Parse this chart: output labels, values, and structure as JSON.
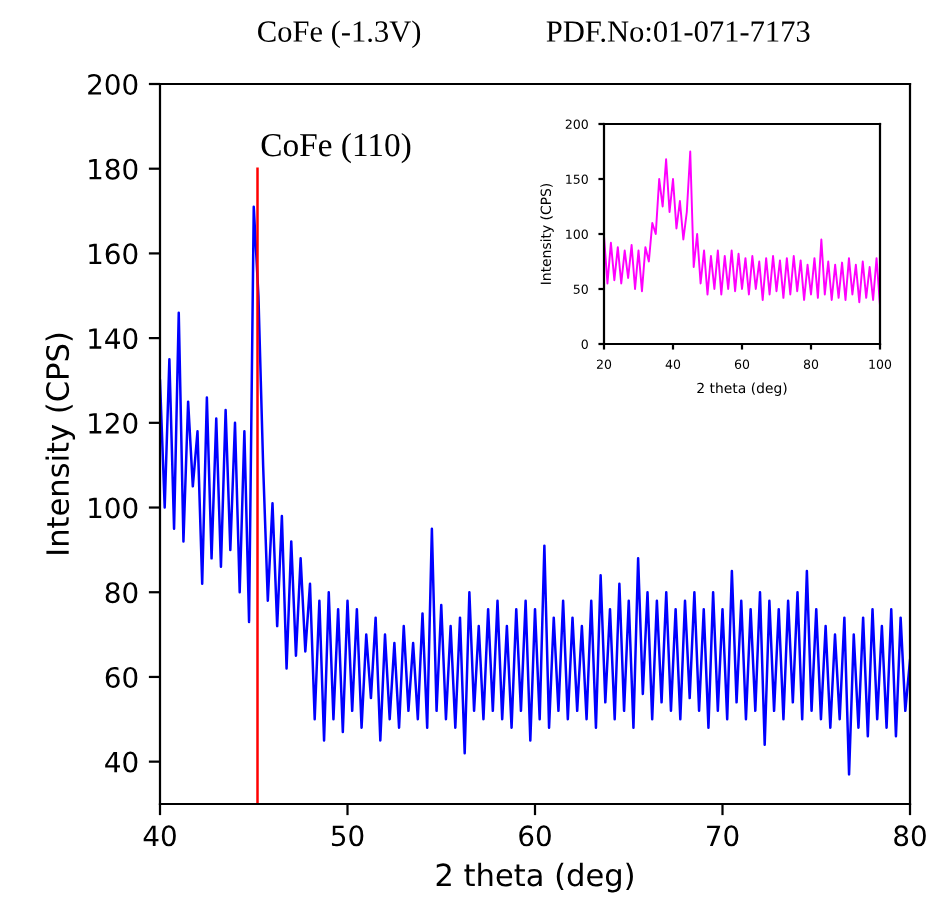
{
  "chart_data": [
    {
      "type": "line",
      "title": "CoFe (-1.3V)",
      "xlabel": "2 theta (deg)",
      "ylabel": "Intensity (CPS)",
      "xlim": [
        40,
        80
      ],
      "ylim": [
        30,
        200
      ],
      "xticks": [
        40,
        50,
        60,
        70,
        80
      ],
      "yticks": [
        40,
        60,
        80,
        100,
        120,
        140,
        160,
        180,
        200
      ],
      "grid": false,
      "annotations": [
        {
          "text": "CoFe (110)",
          "x": 45.2,
          "y": 180
        },
        "PDF.No:01-071-7173"
      ],
      "series": [
        {
          "color": "#0000ff",
          "x": [
            40,
            40.25,
            40.5,
            40.75,
            41,
            41.25,
            41.5,
            41.75,
            42,
            42.25,
            42.5,
            42.75,
            43,
            43.25,
            43.5,
            43.75,
            44,
            44.25,
            44.5,
            44.75,
            45,
            45.25,
            45.5,
            45.75,
            46,
            46.25,
            46.5,
            46.75,
            47,
            47.25,
            47.5,
            47.75,
            48,
            48.25,
            48.5,
            48.75,
            49,
            49.25,
            49.5,
            49.75,
            50,
            50.25,
            50.5,
            50.75,
            51,
            51.25,
            51.5,
            51.75,
            52,
            52.25,
            52.5,
            52.75,
            53,
            53.25,
            53.5,
            53.75,
            54,
            54.25,
            54.5,
            54.75,
            55,
            55.25,
            55.5,
            55.75,
            56,
            56.25,
            56.5,
            56.75,
            57,
            57.25,
            57.5,
            57.75,
            58,
            58.25,
            58.5,
            58.75,
            59,
            59.25,
            59.5,
            59.75,
            60,
            60.25,
            60.5,
            60.75,
            61,
            61.25,
            61.5,
            61.75,
            62,
            62.25,
            62.5,
            62.75,
            63,
            63.25,
            63.5,
            63.75,
            64,
            64.25,
            64.5,
            64.75,
            65,
            65.25,
            65.5,
            65.75,
            66,
            66.25,
            66.5,
            66.75,
            67,
            67.25,
            67.5,
            67.75,
            68,
            68.25,
            68.5,
            68.75,
            69,
            69.25,
            69.5,
            69.75,
            70,
            70.25,
            70.5,
            70.75,
            71,
            71.25,
            71.5,
            71.75,
            72,
            72.25,
            72.5,
            72.75,
            73,
            73.25,
            73.5,
            73.75,
            74,
            74.25,
            74.5,
            74.75,
            75,
            75.25,
            75.5,
            75.75,
            76,
            76.25,
            76.5,
            76.75,
            77,
            77.25,
            77.5,
            77.75,
            78,
            78.25,
            78.5,
            78.75,
            79,
            79.25,
            79.5,
            79.75,
            80
          ],
          "values": [
            130,
            100,
            135,
            95,
            146,
            92,
            125,
            105,
            118,
            82,
            126,
            88,
            121,
            86,
            123,
            90,
            120,
            80,
            118,
            73,
            171,
            150,
            110,
            78,
            101,
            72,
            98,
            62,
            92,
            65,
            88,
            66,
            82,
            50,
            78,
            45,
            80,
            50,
            76,
            47,
            78,
            52,
            76,
            48,
            70,
            55,
            74,
            45,
            70,
            50,
            68,
            48,
            72,
            52,
            68,
            50,
            75,
            48,
            95,
            52,
            77,
            50,
            72,
            48,
            74,
            42,
            80,
            52,
            72,
            50,
            76,
            52,
            78,
            50,
            72,
            48,
            76,
            52,
            78,
            45,
            76,
            50,
            91,
            48,
            74,
            52,
            78,
            50,
            74,
            52,
            72,
            50,
            78,
            48,
            84,
            54,
            76,
            50,
            82,
            52,
            78,
            48,
            88,
            56,
            80,
            50,
            78,
            54,
            80,
            52,
            76,
            50,
            78,
            55,
            80,
            52,
            76,
            48,
            80,
            52,
            76,
            50,
            85,
            54,
            78,
            50,
            76,
            52,
            80,
            44,
            78,
            52,
            76,
            50,
            78,
            54,
            80,
            50,
            85,
            52,
            76,
            50,
            72,
            48,
            70,
            50,
            74,
            37,
            70,
            48,
            74,
            46,
            76,
            50,
            72,
            48,
            76,
            46,
            74,
            52,
            64
          ]
        },
        {
          "color": "#ff0000",
          "x": [
            45.2,
            45.2
          ],
          "values": [
            30,
            180
          ]
        }
      ]
    },
    {
      "type": "line",
      "xlabel": "2 theta (deg)",
      "ylabel": "Intensity (CPS)",
      "xlim": [
        20,
        100
      ],
      "ylim": [
        0,
        200
      ],
      "xticks": [
        20,
        40,
        60,
        80,
        100
      ],
      "yticks": [
        0,
        50,
        100,
        150,
        200
      ],
      "grid": false,
      "series": [
        {
          "color": "#ff00ff",
          "x": [
            20,
            21,
            22,
            23,
            24,
            25,
            26,
            27,
            28,
            29,
            30,
            31,
            32,
            33,
            34,
            35,
            36,
            37,
            38,
            39,
            40,
            41,
            42,
            43,
            44,
            45,
            46,
            47,
            48,
            49,
            50,
            51,
            52,
            53,
            54,
            55,
            56,
            57,
            58,
            59,
            60,
            61,
            62,
            63,
            64,
            65,
            66,
            67,
            68,
            69,
            70,
            71,
            72,
            73,
            74,
            75,
            76,
            77,
            78,
            79,
            80,
            81,
            82,
            83,
            84,
            85,
            86,
            87,
            88,
            89,
            90,
            91,
            92,
            93,
            94,
            95,
            96,
            97,
            98,
            99,
            100
          ],
          "values": [
            98,
            55,
            92,
            58,
            88,
            55,
            85,
            60,
            90,
            50,
            85,
            48,
            88,
            75,
            110,
            100,
            150,
            125,
            168,
            120,
            150,
            105,
            130,
            95,
            120,
            175,
            70,
            100,
            55,
            85,
            45,
            80,
            50,
            85,
            45,
            80,
            50,
            85,
            48,
            82,
            50,
            78,
            45,
            80,
            50,
            75,
            40,
            78,
            45,
            80,
            48,
            76,
            42,
            78,
            45,
            80,
            48,
            76,
            40,
            72,
            45,
            78,
            42,
            95,
            45,
            75,
            40,
            72,
            42,
            74,
            40,
            78,
            45,
            72,
            38,
            75,
            42,
            70,
            40,
            78,
            35
          ]
        }
      ]
    }
  ]
}
